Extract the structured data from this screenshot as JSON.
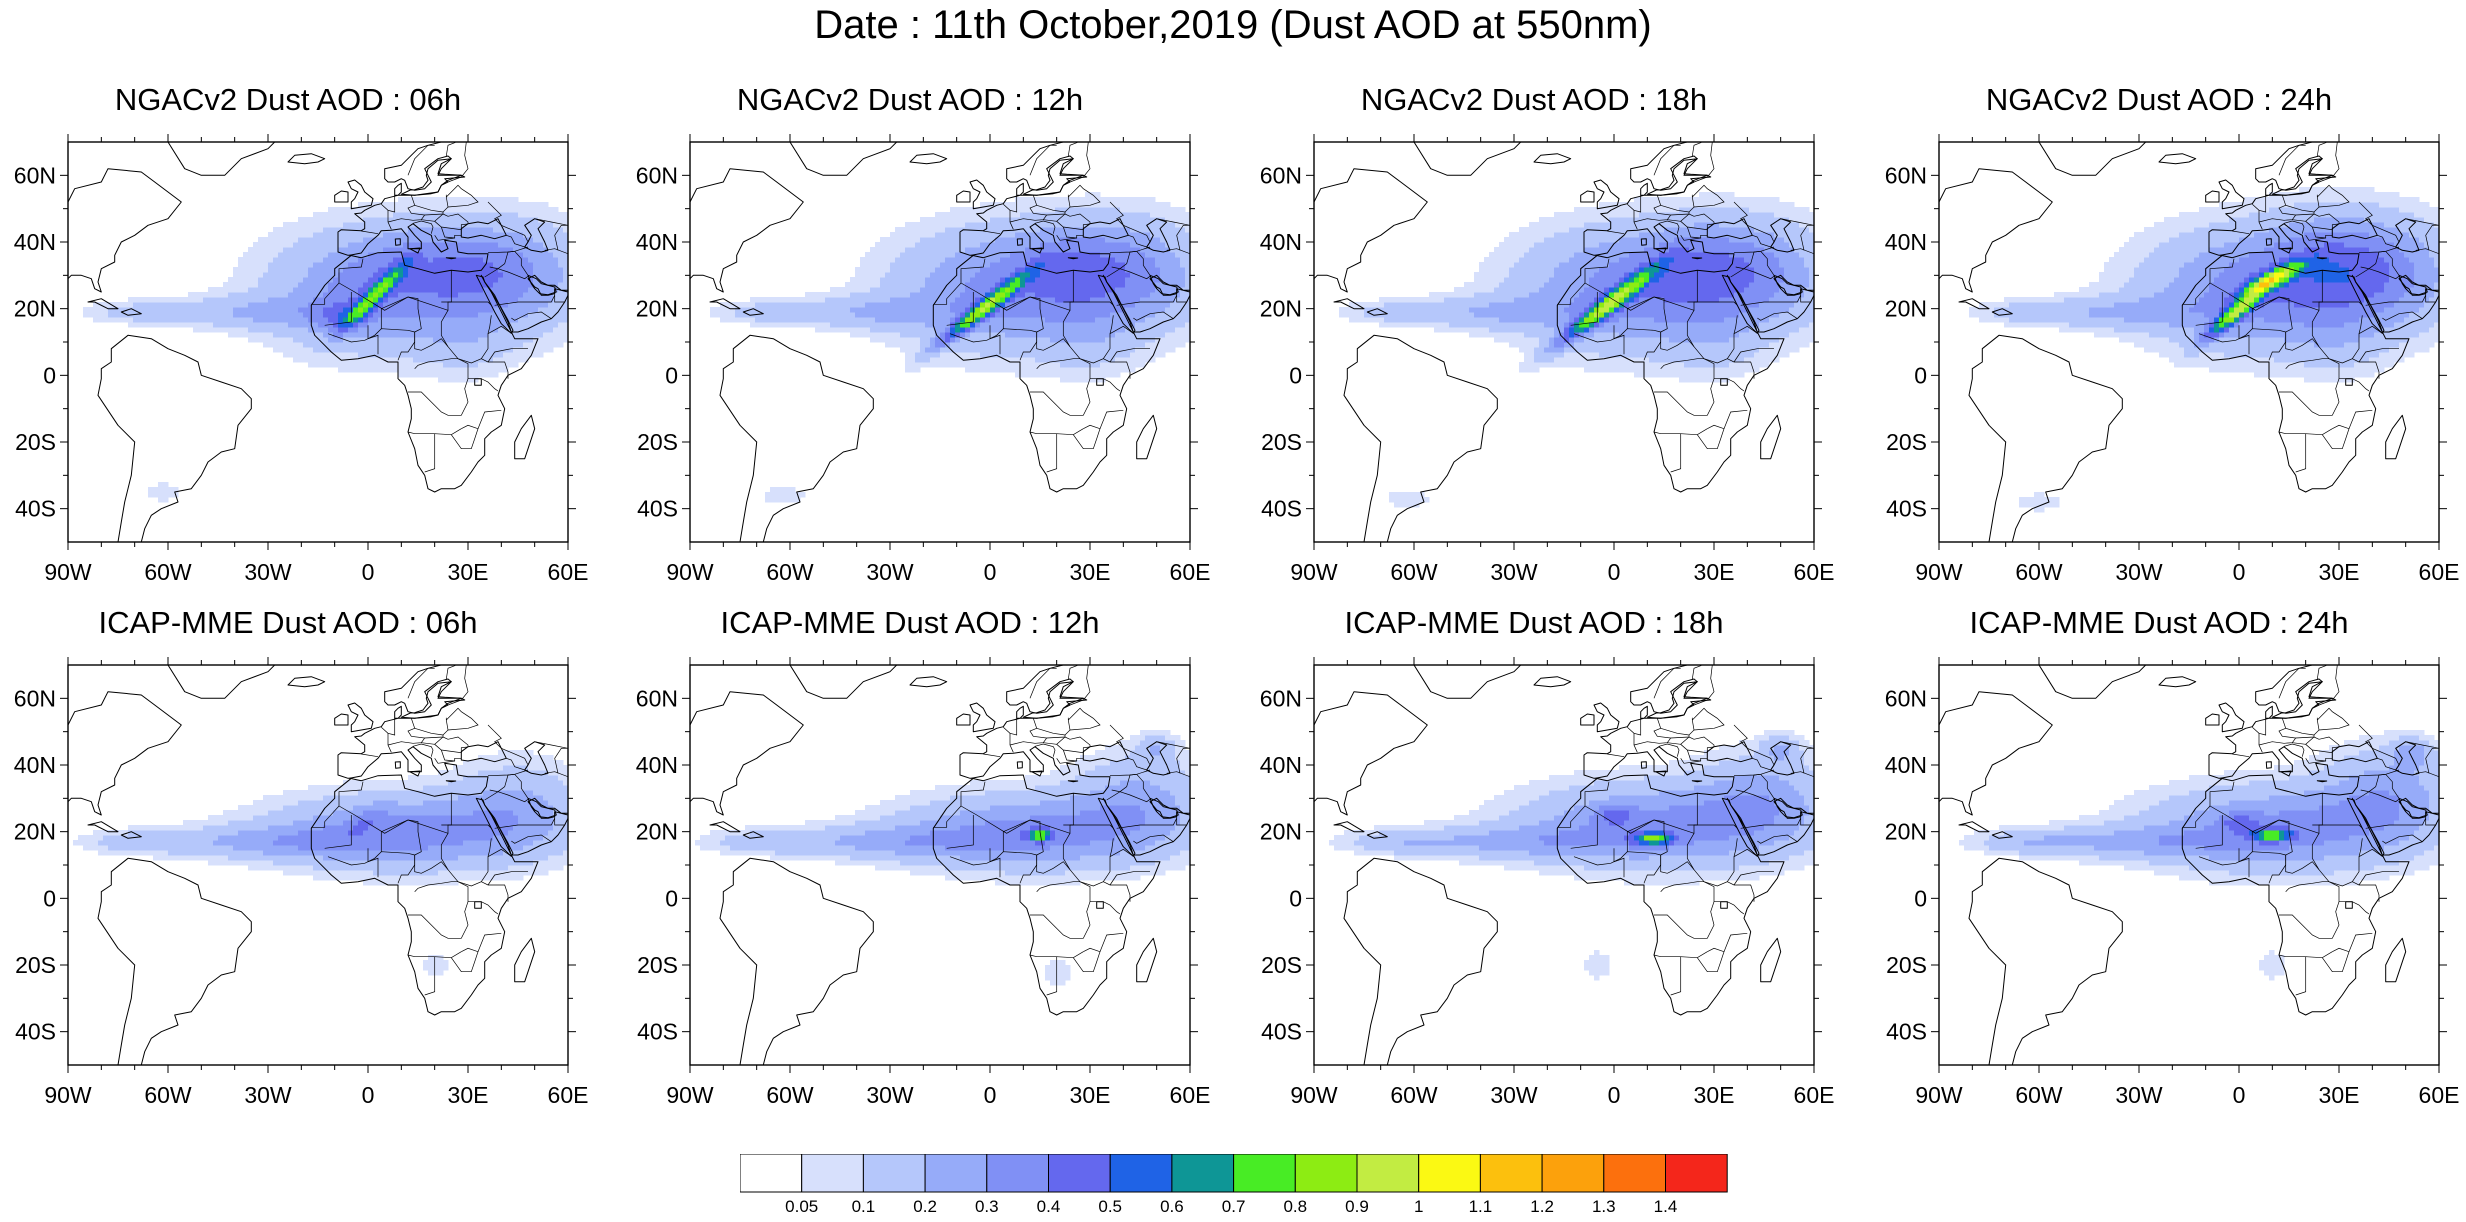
{
  "figure": {
    "title": "Date : 11th October,2019 (Dust AOD at 550nm)"
  },
  "panels": [
    {
      "title": "NGACv2 Dust AOD : 06h",
      "model": "NGAC",
      "hour": 6
    },
    {
      "title": "NGACv2 Dust AOD : 12h",
      "model": "NGAC",
      "hour": 12
    },
    {
      "title": "NGACv2 Dust AOD : 18h",
      "model": "NGAC",
      "hour": 18
    },
    {
      "title": "NGACv2 Dust AOD : 24h",
      "model": "NGAC",
      "hour": 24
    },
    {
      "title": "ICAP-MME Dust AOD : 06h",
      "model": "ICAP",
      "hour": 6
    },
    {
      "title": "ICAP-MME Dust AOD : 12h",
      "model": "ICAP",
      "hour": 12
    },
    {
      "title": "ICAP-MME Dust AOD : 18h",
      "model": "ICAP",
      "hour": 18
    },
    {
      "title": "ICAP-MME Dust AOD : 24h",
      "model": "ICAP",
      "hour": 24
    }
  ],
  "map": {
    "lon_range": [
      -90,
      60
    ],
    "lat_range": [
      -50,
      70
    ],
    "lat_ticks": [
      {
        "value": 60,
        "label": "60N"
      },
      {
        "value": 40,
        "label": "40N"
      },
      {
        "value": 20,
        "label": "20N"
      },
      {
        "value": 0,
        "label": "0"
      },
      {
        "value": -20,
        "label": "20S"
      },
      {
        "value": -40,
        "label": "40S"
      }
    ],
    "lon_ticks": [
      {
        "value": -90,
        "label": "90W"
      },
      {
        "value": -60,
        "label": "60W"
      },
      {
        "value": -30,
        "label": "30W"
      },
      {
        "value": 0,
        "label": "0"
      },
      {
        "value": 30,
        "label": "30E"
      },
      {
        "value": 60,
        "label": "60E"
      }
    ]
  },
  "colorbar": {
    "levels": [
      "0.05",
      "0.1",
      "0.2",
      "0.3",
      "0.4",
      "0.5",
      "0.6",
      "0.7",
      "0.8",
      "0.9",
      "1",
      "1.1",
      "1.2",
      "1.3",
      "1.4"
    ],
    "colors": [
      "#ffffff",
      "#d7e0fc",
      "#b5c7fb",
      "#96abf9",
      "#8090f5",
      "#6468ee",
      "#1f63e6",
      "#0e9696",
      "#48ec25",
      "#8dec13",
      "#c2ec42",
      "#fbf913",
      "#fcc00d",
      "#fca10c",
      "#fc700d",
      "#f4261b"
    ]
  }
}
